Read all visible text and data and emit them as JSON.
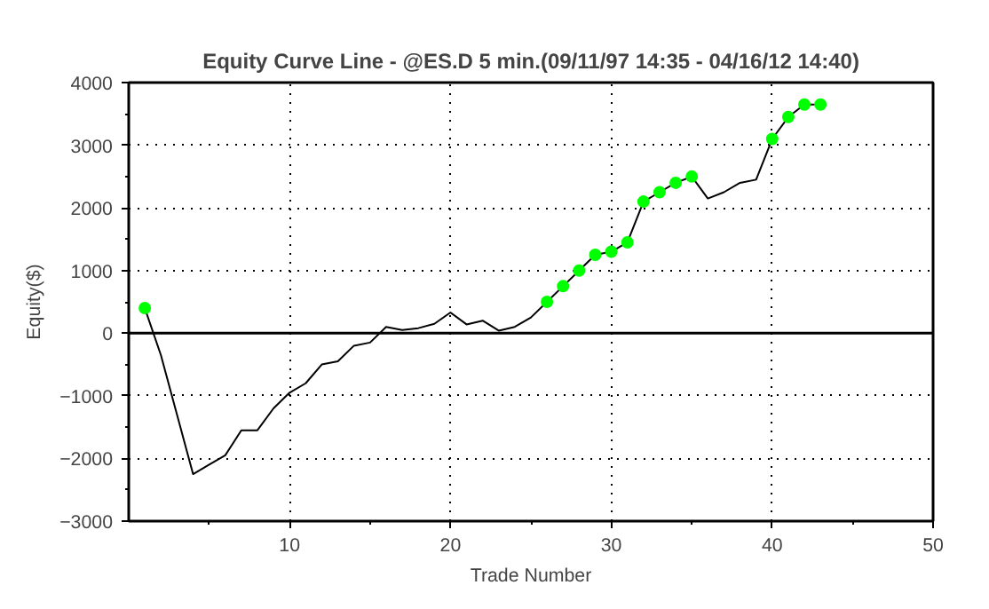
{
  "chart_data": {
    "type": "line",
    "title": "Equity Curve Line - @ES.D 5 min.(09/11/97 14:35 - 04/16/12 14:40)",
    "xlabel": "Trade Number",
    "ylabel": "Equity($)",
    "series": [
      {
        "color": "#000000",
        "marker": "none",
        "line_style": "solid",
        "x": [
          1,
          2,
          3,
          4,
          5,
          6,
          7,
          8,
          9,
          10,
          11,
          12,
          13,
          14,
          15,
          16,
          17,
          18,
          19,
          20,
          21,
          22,
          23,
          24,
          25,
          26,
          27,
          28,
          29,
          30,
          31,
          32,
          33,
          34,
          35,
          36,
          37,
          38,
          39,
          40,
          41,
          42,
          43
        ],
        "values": [
          400,
          -350,
          -1300,
          -2250,
          -2100,
          -1950,
          -1550,
          -1550,
          -1200,
          -950,
          -800,
          -500,
          -450,
          -200,
          -150,
          100,
          50,
          80,
          150,
          330,
          140,
          200,
          40,
          100,
          250,
          500,
          750,
          1000,
          1250,
          1300,
          1450,
          2100,
          2250,
          2400,
          2500,
          2150,
          2250,
          2400,
          2450,
          3100,
          3450,
          3650,
          3650
        ]
      },
      {
        "type": "scatter",
        "color": "#00ff00",
        "marker": "circle",
        "x": [
          1,
          26,
          27,
          28,
          29,
          30,
          31,
          32,
          33,
          34,
          35,
          40,
          41,
          42,
          43
        ],
        "values": [
          400,
          500,
          750,
          1000,
          1250,
          1300,
          1450,
          2100,
          2250,
          2400,
          2500,
          3100,
          3450,
          3650,
          3650
        ]
      }
    ],
    "xlim": [
      0,
      50
    ],
    "xticks": [
      10,
      20,
      30,
      40,
      50
    ],
    "ylim": [
      -3000,
      4000
    ],
    "yticks": [
      -3000,
      -2000,
      -1000,
      0,
      1000,
      2000,
      3000,
      4000
    ],
    "ref_lines": [
      {
        "axis": "y",
        "value": 0,
        "color": "#000000"
      }
    ],
    "grid": true
  }
}
